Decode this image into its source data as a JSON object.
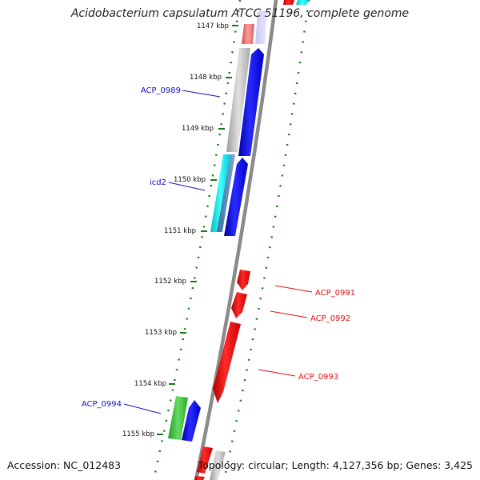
{
  "title": "Acidobacterium capsulatum ATCC 51196, complete genome",
  "footer": {
    "accession": "Accession: NC_012483",
    "summary": "Topology: circular; Length: 4,127,356 bp; Genes: 3,425"
  },
  "colors": {
    "backbone": "#8a8a8a",
    "tick": "#1a7a1a",
    "forward_label": "#1010c0",
    "reverse_label": "#e01010",
    "cds_blue": "#0000ee",
    "cds_red": "#ee0000",
    "cds_cyan": "#00e0e0",
    "cds_gray": "#b0b0b0",
    "cds_green": "#33bb33",
    "cds_pink": "#ee7777"
  },
  "ticks": [
    {
      "label": "1147 kbp"
    },
    {
      "label": "1148 kbp"
    },
    {
      "label": "1149 kbp"
    },
    {
      "label": "1150 kbp"
    },
    {
      "label": "1151 kbp"
    },
    {
      "label": "1152 kbp"
    },
    {
      "label": "1153 kbp"
    },
    {
      "label": "1154 kbp"
    },
    {
      "label": "1155 kbp"
    }
  ],
  "gene_labels": [
    {
      "name": "ACP_0989",
      "strand": "forward"
    },
    {
      "name": "icd2",
      "strand": "forward"
    },
    {
      "name": "ACP_0991",
      "strand": "reverse"
    },
    {
      "name": "ACP_0992",
      "strand": "reverse"
    },
    {
      "name": "ACP_0993",
      "strand": "reverse"
    },
    {
      "name": "ACP_0994",
      "strand": "forward"
    }
  ]
}
